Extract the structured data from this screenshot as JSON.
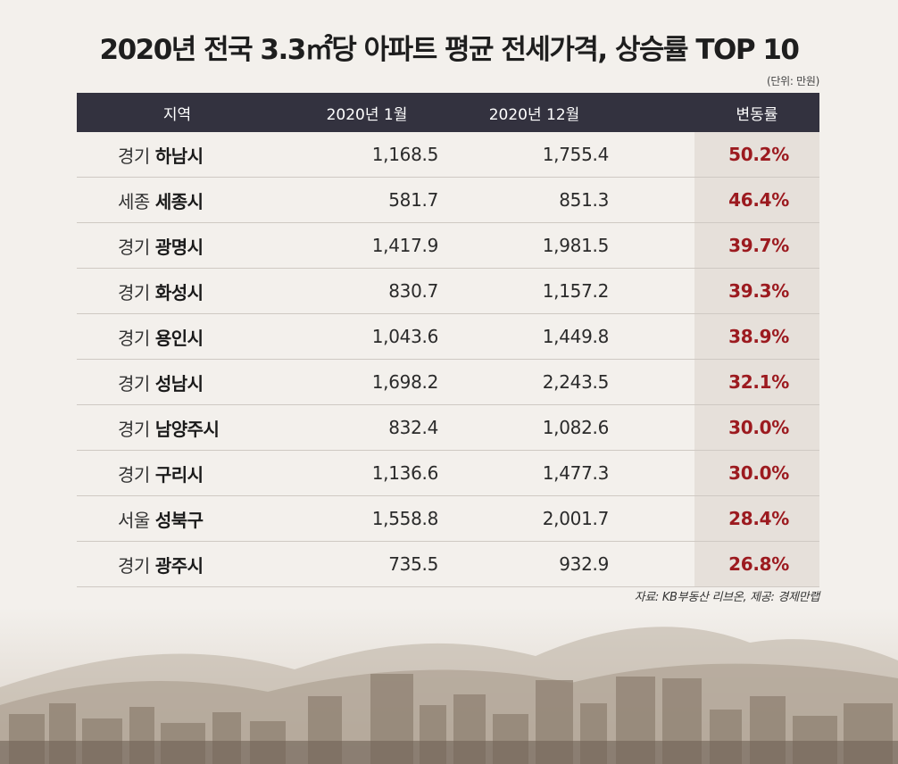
{
  "title": "2020년 전국 3.3㎡당 아파트 평균 전세가격, 상승률 TOP 10",
  "unit_note": "(단위: 만원)",
  "source": "자료: KB부동산 리브온, 제공: 경제만랩",
  "colors": {
    "header_bg": "#33323f",
    "rate_text": "#9c1a1f",
    "rate_bg": "#e6e0da",
    "page_bg": "#f3f0ec"
  },
  "chart_data": {
    "type": "table",
    "title": "2020년 전국 3.3㎡당 아파트 평균 전세가격, 상승률 TOP 10",
    "columns": [
      "지역",
      "2020년 1월",
      "2020년 12월",
      "변동률"
    ],
    "rows": [
      {
        "province": "경기",
        "city": "하남시",
        "jan": "1,168.5",
        "dec": "1,755.4",
        "rate": "50.2%"
      },
      {
        "province": "세종",
        "city": "세종시",
        "jan": "581.7",
        "dec": "851.3",
        "rate": "46.4%"
      },
      {
        "province": "경기",
        "city": "광명시",
        "jan": "1,417.9",
        "dec": "1,981.5",
        "rate": "39.7%"
      },
      {
        "province": "경기",
        "city": "화성시",
        "jan": "830.7",
        "dec": "1,157.2",
        "rate": "39.3%"
      },
      {
        "province": "경기",
        "city": "용인시",
        "jan": "1,043.6",
        "dec": "1,449.8",
        "rate": "38.9%"
      },
      {
        "province": "경기",
        "city": "성남시",
        "jan": "1,698.2",
        "dec": "2,243.5",
        "rate": "32.1%"
      },
      {
        "province": "경기",
        "city": "남양주시",
        "jan": "832.4",
        "dec": "1,082.6",
        "rate": "30.0%"
      },
      {
        "province": "경기",
        "city": "구리시",
        "jan": "1,136.6",
        "dec": "1,477.3",
        "rate": "30.0%"
      },
      {
        "province": "서울",
        "city": "성북구",
        "jan": "1,558.8",
        "dec": "2,001.7",
        "rate": "28.4%"
      },
      {
        "province": "경기",
        "city": "광주시",
        "jan": "735.5",
        "dec": "932.9",
        "rate": "26.8%"
      }
    ]
  }
}
